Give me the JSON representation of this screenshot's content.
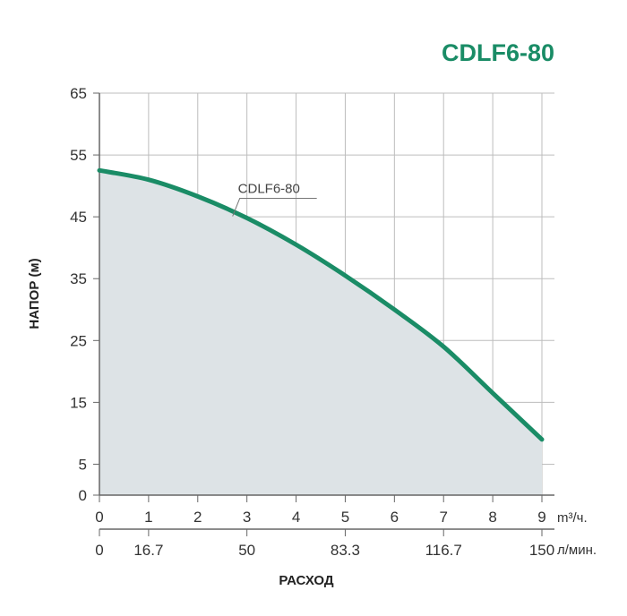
{
  "colors": {
    "accent": "#1a8c66",
    "fill": "#dde3e6",
    "grid": "#bdbdbd",
    "axis": "#666666"
  },
  "chart_data": {
    "type": "area",
    "title": "CDLF6-80",
    "ylabel": "НАПОР (м)",
    "xlabel": "РАСХОД",
    "x_unit_primary": "m³/ч.",
    "x_unit_secondary": "л/мин.",
    "ylim": [
      0,
      65
    ],
    "xlim": [
      0,
      9
    ],
    "grid": true,
    "yticks": [
      "0",
      "5",
      "15",
      "25",
      "35",
      "45",
      "55",
      "65"
    ],
    "xticks_primary": [
      "0",
      "1",
      "2",
      "3",
      "4",
      "5",
      "6",
      "7",
      "8",
      "9"
    ],
    "xticks_secondary": [
      {
        "at": 0,
        "label": "0"
      },
      {
        "at": 1,
        "label": "16.7"
      },
      {
        "at": 3,
        "label": "50"
      },
      {
        "at": 5,
        "label": "83.3"
      },
      {
        "at": 7,
        "label": "116.7"
      },
      {
        "at": 9,
        "label": "150"
      }
    ],
    "series": [
      {
        "name": "CDLF6-80",
        "label_at_x": 3,
        "x": [
          0,
          1,
          2,
          3,
          4,
          5,
          6,
          7,
          8,
          9
        ],
        "values": [
          52.5,
          51.0,
          48.3,
          44.8,
          40.5,
          35.5,
          30.0,
          24.0,
          16.5,
          9.0
        ]
      }
    ]
  }
}
